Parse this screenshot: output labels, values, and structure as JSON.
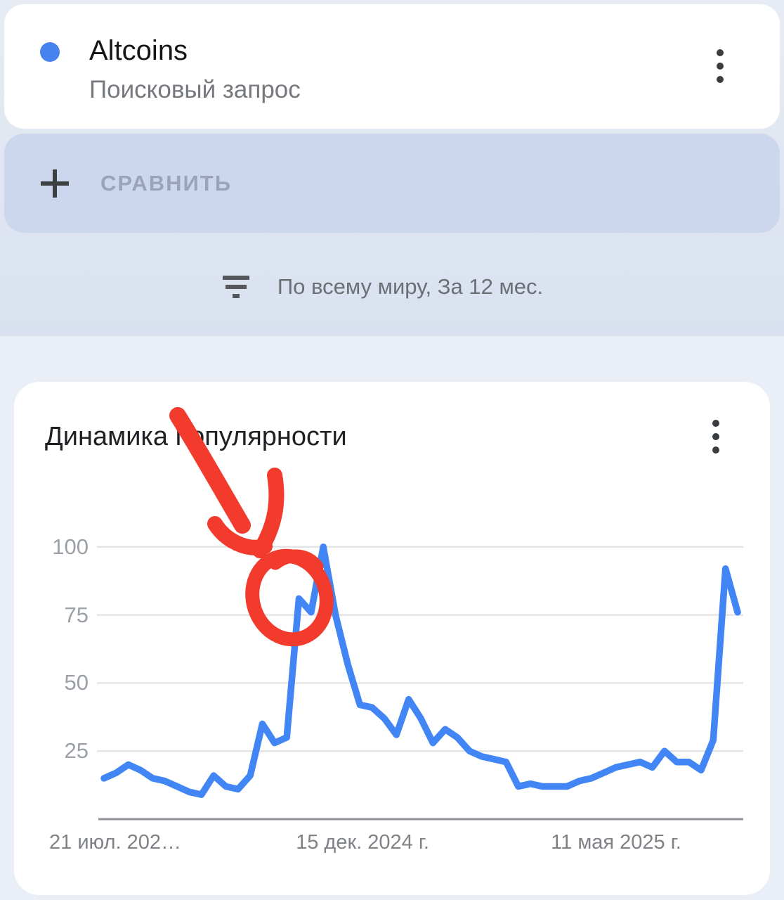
{
  "term_card": {
    "term": "Altcoins",
    "term_type_label": "Поисковый запрос",
    "dot_color": "#4683ee",
    "menu_icon": "kebab-menu-icon"
  },
  "compare_button": {
    "label": "СРАВНИТЬ",
    "icon": "plus-icon",
    "bg_color": "#ccd7ee"
  },
  "filter_bar": {
    "label": "По всему миру, За 12 мес.",
    "icon": "filter-list-icon"
  },
  "trend_card": {
    "title": "Динамика популярности",
    "menu_icon": "kebab-menu-icon"
  },
  "chart_data": {
    "type": "line",
    "title": "Динамика популярности",
    "series_name": "Altcoins",
    "values": [
      15,
      17,
      20,
      18,
      15,
      14,
      12,
      10,
      9,
      16,
      12,
      11,
      16,
      35,
      28,
      30,
      81,
      76,
      100,
      75,
      57,
      42,
      41,
      37,
      31,
      44,
      37,
      28,
      33,
      30,
      25,
      23,
      22,
      21,
      12,
      13,
      12,
      12,
      12,
      14,
      15,
      17,
      19,
      20,
      21,
      19,
      25,
      21,
      21,
      18,
      29,
      92,
      76
    ],
    "y_ticks": [
      25,
      50,
      75,
      100
    ],
    "ylim": [
      0,
      100
    ],
    "x_tick_labels": [
      "21 июл. 202…",
      "15 дек. 2024 г.",
      "11 мая 2025 г."
    ],
    "grid": "horizontal gridlines on, light gray",
    "legend": "none",
    "line_color": "#4286f5",
    "annotation": {
      "color": "#f23b2c",
      "description": "hand-drawn red arrow pointing down to a hand-drawn red circle around the ~81 spike just before the 100 peak"
    }
  }
}
